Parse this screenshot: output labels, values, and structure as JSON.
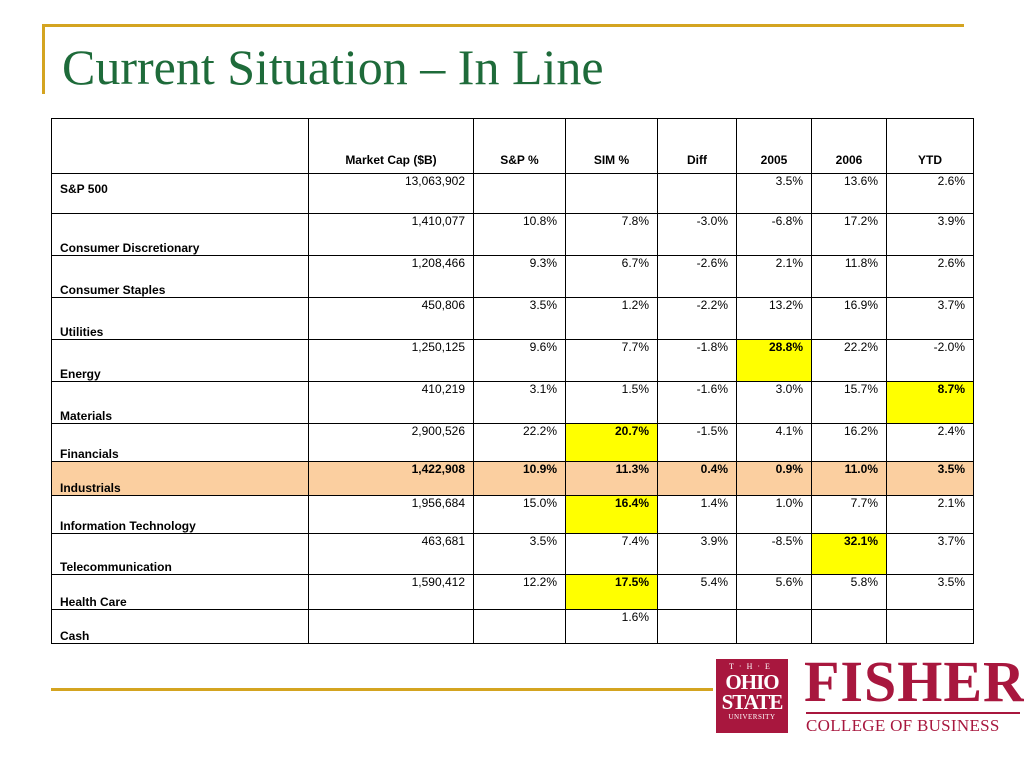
{
  "slide": {
    "title": "Current Situation – In Line"
  },
  "table": {
    "headers": [
      "",
      "Market Cap ($B)",
      "S&P %",
      "SIM %",
      "Diff",
      "2005",
      "2006",
      "YTD"
    ],
    "rows": [
      {
        "label": "S&P 500",
        "values": [
          "13,063,902",
          "",
          "",
          "",
          "3.5%",
          "13.6%",
          "2.6%"
        ]
      },
      {
        "label": "Consumer Discretionary",
        "values": [
          "1,410,077",
          "10.8%",
          "7.8%",
          "-3.0%",
          "-6.8%",
          "17.2%",
          "3.9%"
        ]
      },
      {
        "label": "Consumer Staples",
        "values": [
          "1,208,466",
          "9.3%",
          "6.7%",
          "-2.6%",
          "2.1%",
          "11.8%",
          "2.6%"
        ]
      },
      {
        "label": "Utilities",
        "values": [
          "450,806",
          "3.5%",
          "1.2%",
          "-2.2%",
          "13.2%",
          "16.9%",
          "3.7%"
        ]
      },
      {
        "label": "Energy",
        "values": [
          "1,250,125",
          "9.6%",
          "7.7%",
          "-1.8%",
          "28.8%",
          "22.2%",
          "-2.0%"
        ]
      },
      {
        "label": "Materials",
        "values": [
          "410,219",
          "3.1%",
          "1.5%",
          "-1.6%",
          "3.0%",
          "15.7%",
          "8.7%"
        ]
      },
      {
        "label": "Financials",
        "values": [
          "2,900,526",
          "22.2%",
          "20.7%",
          "-1.5%",
          "4.1%",
          "16.2%",
          "2.4%"
        ]
      },
      {
        "label": "Industrials",
        "values": [
          "1,422,908",
          "10.9%",
          "11.3%",
          "0.4%",
          "0.9%",
          "11.0%",
          "3.5%"
        ]
      },
      {
        "label": "Information Technology",
        "values": [
          "1,956,684",
          "15.0%",
          "16.4%",
          "1.4%",
          "1.0%",
          "7.7%",
          "2.1%"
        ]
      },
      {
        "label": "Telecommunication",
        "values": [
          "463,681",
          "3.5%",
          "7.4%",
          "3.9%",
          "-8.5%",
          "32.1%",
          "3.7%"
        ]
      },
      {
        "label": "Health Care",
        "values": [
          "1,590,412",
          "12.2%",
          "17.5%",
          "5.4%",
          "5.6%",
          "5.8%",
          "3.5%"
        ]
      },
      {
        "label": "Cash",
        "values": [
          "",
          "",
          "1.6%",
          "",
          "",
          "",
          ""
        ]
      }
    ]
  },
  "colors": {
    "title": "#1e6b3a",
    "rule": "#d4a420",
    "row_highlight": "#fbcfa0",
    "cell_highlight": "#ffff00",
    "brand": "#a8173e"
  },
  "logo": {
    "osu_the": "T·H·E",
    "osu_line1": "OHIO",
    "osu_line2": "STATE",
    "osu_line3": "UNIVERSITY",
    "fisher": "FISHER",
    "college": "COLLEGE OF BUSINESS"
  }
}
